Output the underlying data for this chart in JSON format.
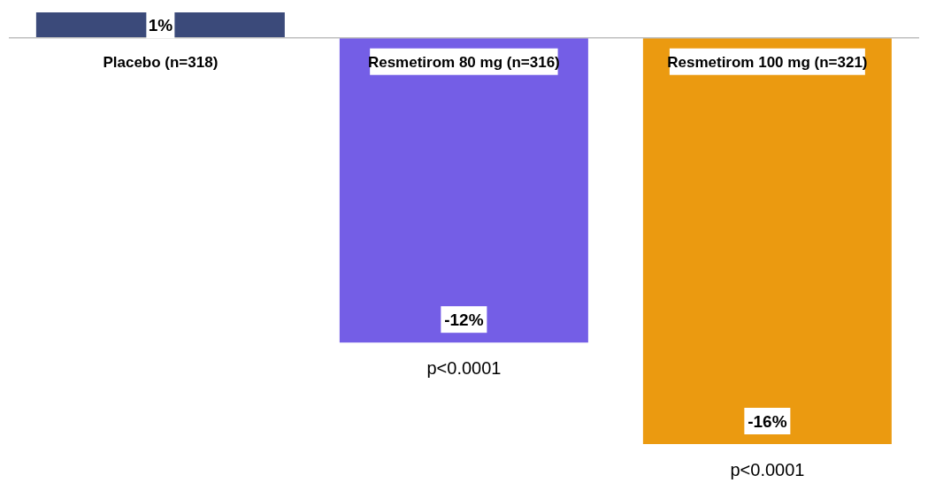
{
  "chart_data": {
    "type": "bar",
    "categories": [
      "Placebo (n=318)",
      "Resmetirom 80 mg (n=316)",
      "Resmetirom 100 mg (n=321)"
    ],
    "values": [
      1,
      -12,
      -16
    ],
    "colors": [
      "#3b4a7a",
      "#745ee6",
      "#eb9a10"
    ],
    "value_labels": [
      "1%",
      "-12%",
      "-16%"
    ],
    "annotations": [
      {
        "text": "p<0.0001",
        "x": "Resmetirom 80 mg (n=316)",
        "y": -12
      },
      {
        "text": "p<0.0001",
        "x": "Resmetirom 100 mg (n=321)",
        "y": -16
      }
    ]
  }
}
